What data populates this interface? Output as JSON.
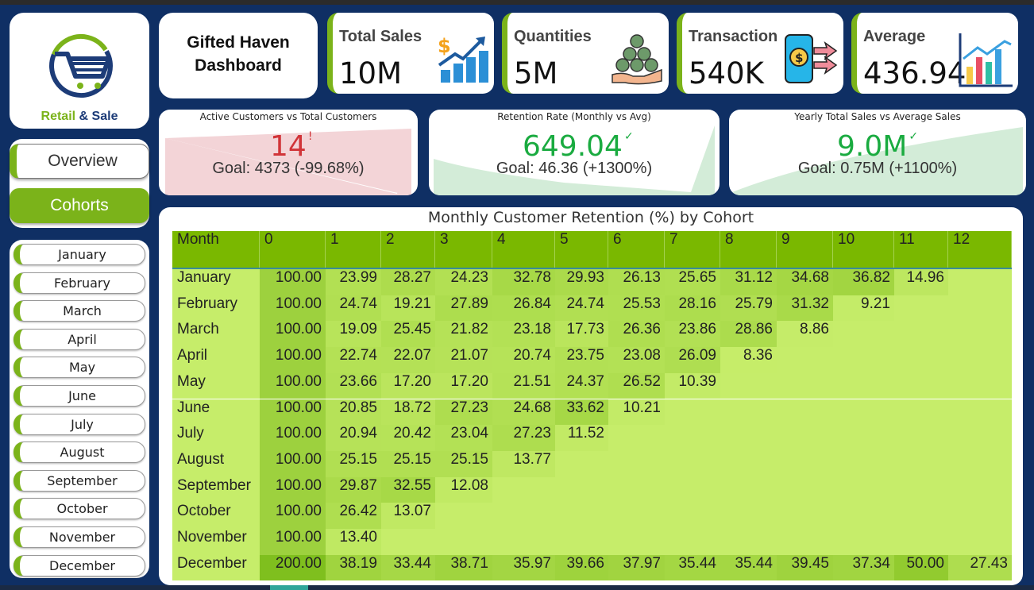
{
  "logo": {
    "word1": "Retail",
    "amp": " & ",
    "word2": "Sale"
  },
  "title": {
    "line1": "Gifted Haven",
    "line2": "Dashboard"
  },
  "nav": {
    "overview": "Overview",
    "cohorts": "Cohorts"
  },
  "months": [
    "January",
    "February",
    "March",
    "April",
    "May",
    "June",
    "July",
    "August",
    "September",
    "October",
    "November",
    "December"
  ],
  "kpis": [
    {
      "label": "Total Sales",
      "value": "10M",
      "icon": "sales-growth-icon"
    },
    {
      "label": "Quantities",
      "value": "5M",
      "icon": "coins-hand-icon"
    },
    {
      "label": "Transaction",
      "value": "540K",
      "icon": "phone-payment-icon"
    },
    {
      "label": "Average",
      "value": "436.94",
      "icon": "bar-chart-icon"
    }
  ],
  "gauges": [
    {
      "title": "Active Customers vs Total Customers",
      "value": "14",
      "mark": "!",
      "goal": "Goal: 4373 (-99.68%)",
      "color": "#d13438"
    },
    {
      "title": "Retention Rate (Monthly vs Avg)",
      "value": "649.04",
      "mark": "✓",
      "goal": "Goal: 46.36 (+1300%)",
      "color": "#1aab40"
    },
    {
      "title": "Yearly Total Sales vs Average Sales",
      "value": "9.0M",
      "mark": "✓",
      "goal": "Goal: 0.75M (+1100%)",
      "color": "#1aab40"
    }
  ],
  "colors": {
    "accent": "#7bb31a",
    "navy": "#1d3c78",
    "header": "#7ab800",
    "cell_base": "#c6ed6a"
  },
  "table": {
    "title": "Monthly Customer Retention (%) by Cohort",
    "row_header": "Month",
    "columns": [
      "0",
      "1",
      "2",
      "3",
      "4",
      "5",
      "6",
      "7",
      "8",
      "9",
      "10",
      "11",
      "12"
    ],
    "rows": [
      {
        "month": "January",
        "values": [
          "100.00",
          "23.99",
          "28.27",
          "24.23",
          "32.78",
          "29.93",
          "26.13",
          "25.65",
          "31.12",
          "34.68",
          "36.82",
          "14.96",
          ""
        ]
      },
      {
        "month": "February",
        "values": [
          "100.00",
          "24.74",
          "19.21",
          "27.89",
          "26.84",
          "24.74",
          "25.53",
          "28.16",
          "25.79",
          "31.32",
          "9.21",
          "",
          ""
        ]
      },
      {
        "month": "March",
        "values": [
          "100.00",
          "19.09",
          "25.45",
          "21.82",
          "23.18",
          "17.73",
          "26.36",
          "23.86",
          "28.86",
          "8.86",
          "",
          "",
          ""
        ]
      },
      {
        "month": "April",
        "values": [
          "100.00",
          "22.74",
          "22.07",
          "21.07",
          "20.74",
          "23.75",
          "23.08",
          "26.09",
          "8.36",
          "",
          "",
          "",
          ""
        ]
      },
      {
        "month": "May",
        "values": [
          "100.00",
          "23.66",
          "17.20",
          "17.20",
          "21.51",
          "24.37",
          "26.52",
          "10.39",
          "",
          "",
          "",
          "",
          ""
        ]
      },
      {
        "month": "June",
        "values": [
          "100.00",
          "20.85",
          "18.72",
          "27.23",
          "24.68",
          "33.62",
          "10.21",
          "",
          "",
          "",
          "",
          "",
          ""
        ]
      },
      {
        "month": "July",
        "values": [
          "100.00",
          "20.94",
          "20.42",
          "23.04",
          "27.23",
          "11.52",
          "",
          "",
          "",
          "",
          "",
          "",
          ""
        ]
      },
      {
        "month": "August",
        "values": [
          "100.00",
          "25.15",
          "25.15",
          "25.15",
          "13.77",
          "",
          "",
          "",
          "",
          "",
          "",
          "",
          ""
        ]
      },
      {
        "month": "September",
        "values": [
          "100.00",
          "29.87",
          "32.55",
          "12.08",
          "",
          "",
          "",
          "",
          "",
          "",
          "",
          "",
          ""
        ]
      },
      {
        "month": "October",
        "values": [
          "100.00",
          "26.42",
          "13.07",
          "",
          "",
          "",
          "",
          "",
          "",
          "",
          "",
          "",
          ""
        ]
      },
      {
        "month": "November",
        "values": [
          "100.00",
          "13.40",
          "",
          "",
          "",
          "",
          "",
          "",
          "",
          "",
          "",
          "",
          ""
        ]
      },
      {
        "month": "December",
        "values": [
          "200.00",
          "38.19",
          "33.44",
          "38.71",
          "35.97",
          "39.66",
          "37.97",
          "35.44",
          "35.44",
          "39.45",
          "37.34",
          "50.00",
          "27.43"
        ]
      }
    ]
  }
}
